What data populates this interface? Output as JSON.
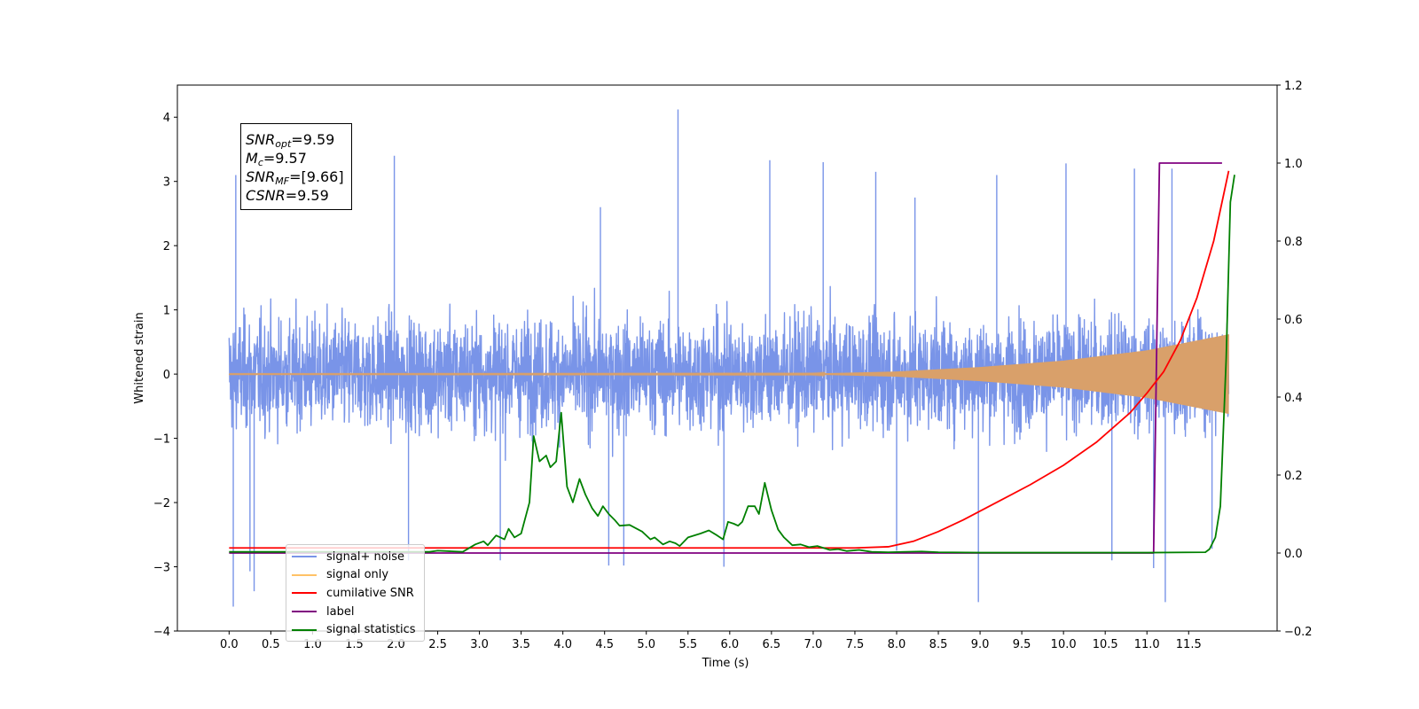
{
  "chart_data": {
    "type": "line",
    "xlabel": "Time (s)",
    "ylabel": "Whitened strain",
    "xlim": [
      -0.62,
      12.56
    ],
    "ylim": [
      -4,
      4.5
    ],
    "y2lim": [
      -0.2,
      1.2
    ],
    "xticks": [
      "0.0",
      "0.5",
      "1.0",
      "1.5",
      "2.0",
      "2.5",
      "3.0",
      "3.5",
      "4.0",
      "4.5",
      "5.0",
      "5.5",
      "6.0",
      "6.5",
      "7.0",
      "7.5",
      "8.0",
      "8.5",
      "9.0",
      "9.5",
      "10.0",
      "10.5",
      "11.0",
      "11.5"
    ],
    "yticks": [
      "−4",
      "−3",
      "−2",
      "−1",
      "0",
      "1",
      "2",
      "3",
      "4"
    ],
    "y2ticks": [
      "−0.2",
      "0.0",
      "0.2",
      "0.4",
      "0.6",
      "0.8",
      "1.0",
      "1.2"
    ],
    "legend_position": "lower-left",
    "annotation": {
      "snr_opt": "9.59",
      "mc": "9.57",
      "snr_mf": "[9.66]",
      "csnr": "9.59"
    },
    "series": [
      {
        "name": "signal+ noise",
        "color": "#7994e8",
        "axis": "left",
        "t_end": 11.98,
        "noise_sigma": 0.85,
        "spikes": [
          [
            0.05,
            -3.62
          ],
          [
            0.25,
            -3.07
          ],
          [
            0.3,
            -3.38
          ],
          [
            0.08,
            3.1
          ],
          [
            1.98,
            3.4
          ],
          [
            2.15,
            -2.9
          ],
          [
            3.25,
            -2.9
          ],
          [
            4.45,
            2.6
          ],
          [
            4.55,
            -2.98
          ],
          [
            4.73,
            -2.98
          ],
          [
            5.38,
            4.12
          ],
          [
            5.93,
            -3.0
          ],
          [
            6.48,
            3.33
          ],
          [
            7.12,
            3.3
          ],
          [
            7.75,
            3.15
          ],
          [
            8.0,
            -2.75
          ],
          [
            8.22,
            2.75
          ],
          [
            8.98,
            -3.55
          ],
          [
            9.2,
            3.1
          ],
          [
            10.03,
            3.28
          ],
          [
            10.58,
            -2.9
          ],
          [
            10.85,
            3.2
          ],
          [
            11.08,
            -3.02
          ],
          [
            11.22,
            -3.55
          ],
          [
            11.3,
            3.2
          ],
          [
            11.78,
            -2.72
          ]
        ]
      },
      {
        "name": "signal only",
        "color": "#d9a06a",
        "axis": "left",
        "t_end": 11.98,
        "envelope": [
          [
            0,
            0.005
          ],
          [
            7.0,
            0.008
          ],
          [
            8.0,
            0.04
          ],
          [
            9.0,
            0.11
          ],
          [
            10.0,
            0.21
          ],
          [
            11.0,
            0.37
          ],
          [
            11.98,
            0.62
          ]
        ]
      },
      {
        "name": "cumilative SNR",
        "color": "#ff0000",
        "axis": "right",
        "points": [
          [
            0,
            0.013
          ],
          [
            7.5,
            0.013
          ],
          [
            7.9,
            0.016
          ],
          [
            8.2,
            0.03
          ],
          [
            8.5,
            0.055
          ],
          [
            8.8,
            0.085
          ],
          [
            9.2,
            0.13
          ],
          [
            9.6,
            0.175
          ],
          [
            10.0,
            0.225
          ],
          [
            10.4,
            0.285
          ],
          [
            10.8,
            0.36
          ],
          [
            11.0,
            0.41
          ],
          [
            11.2,
            0.465
          ],
          [
            11.4,
            0.545
          ],
          [
            11.6,
            0.655
          ],
          [
            11.8,
            0.8
          ],
          [
            11.9,
            0.9
          ],
          [
            11.98,
            0.98
          ]
        ]
      },
      {
        "name": "label",
        "color": "#800080",
        "axis": "right",
        "points": [
          [
            0,
            0.0
          ],
          [
            11.08,
            0.0
          ],
          [
            11.15,
            1.0
          ],
          [
            11.9,
            1.0
          ]
        ]
      },
      {
        "name": "signal statistics",
        "color": "#008000",
        "axis": "right",
        "points": [
          [
            0,
            0.003
          ],
          [
            2.4,
            0.003
          ],
          [
            2.5,
            0.006
          ],
          [
            2.8,
            0.003
          ],
          [
            2.95,
            0.022
          ],
          [
            3.05,
            0.03
          ],
          [
            3.1,
            0.02
          ],
          [
            3.2,
            0.045
          ],
          [
            3.3,
            0.035
          ],
          [
            3.35,
            0.062
          ],
          [
            3.42,
            0.04
          ],
          [
            3.5,
            0.05
          ],
          [
            3.6,
            0.13
          ],
          [
            3.65,
            0.3
          ],
          [
            3.72,
            0.235
          ],
          [
            3.8,
            0.25
          ],
          [
            3.85,
            0.22
          ],
          [
            3.92,
            0.235
          ],
          [
            3.98,
            0.36
          ],
          [
            4.05,
            0.17
          ],
          [
            4.12,
            0.13
          ],
          [
            4.2,
            0.19
          ],
          [
            4.27,
            0.15
          ],
          [
            4.35,
            0.115
          ],
          [
            4.42,
            0.095
          ],
          [
            4.48,
            0.12
          ],
          [
            4.55,
            0.1
          ],
          [
            4.62,
            0.085
          ],
          [
            4.68,
            0.07
          ],
          [
            4.8,
            0.072
          ],
          [
            4.95,
            0.055
          ],
          [
            5.05,
            0.035
          ],
          [
            5.1,
            0.04
          ],
          [
            5.2,
            0.022
          ],
          [
            5.28,
            0.03
          ],
          [
            5.35,
            0.025
          ],
          [
            5.4,
            0.018
          ],
          [
            5.5,
            0.04
          ],
          [
            5.65,
            0.05
          ],
          [
            5.75,
            0.058
          ],
          [
            5.85,
            0.045
          ],
          [
            5.92,
            0.035
          ],
          [
            5.98,
            0.08
          ],
          [
            6.05,
            0.075
          ],
          [
            6.1,
            0.07
          ],
          [
            6.15,
            0.08
          ],
          [
            6.22,
            0.12
          ],
          [
            6.3,
            0.12
          ],
          [
            6.35,
            0.1
          ],
          [
            6.42,
            0.18
          ],
          [
            6.5,
            0.11
          ],
          [
            6.58,
            0.06
          ],
          [
            6.65,
            0.04
          ],
          [
            6.75,
            0.02
          ],
          [
            6.85,
            0.022
          ],
          [
            6.95,
            0.015
          ],
          [
            7.05,
            0.018
          ],
          [
            7.2,
            0.008
          ],
          [
            7.3,
            0.01
          ],
          [
            7.4,
            0.005
          ],
          [
            7.55,
            0.008
          ],
          [
            7.7,
            0.003
          ],
          [
            7.9,
            0.002
          ],
          [
            8.3,
            0.004
          ],
          [
            8.5,
            0.002
          ],
          [
            9.0,
            0.001
          ],
          [
            11.0,
            0.001
          ],
          [
            11.7,
            0.002
          ],
          [
            11.75,
            0.01
          ],
          [
            11.82,
            0.04
          ],
          [
            11.88,
            0.12
          ],
          [
            11.95,
            0.5
          ],
          [
            12.0,
            0.9
          ],
          [
            12.05,
            0.97
          ]
        ]
      }
    ]
  }
}
